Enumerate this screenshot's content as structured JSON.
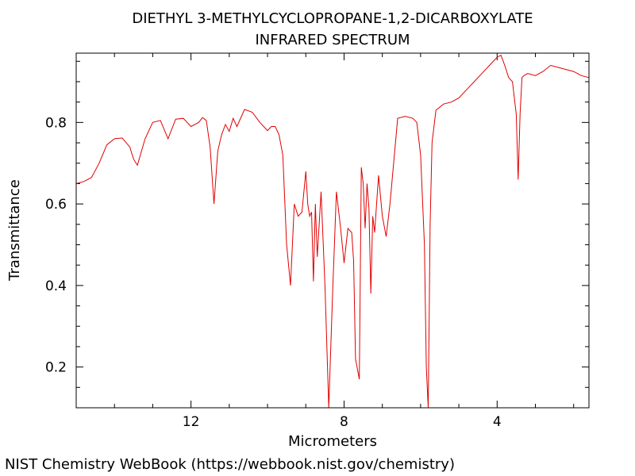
{
  "credit": "NIST Chemistry WebBook (https://webbook.nist.gov/chemistry)",
  "chart_data": {
    "type": "line",
    "title": "DIETHYL 3-METHYLCYCLOPROPANE-1,2-DICARBOXYLATE",
    "subtitle": "INFRARED SPECTRUM",
    "xlabel": "Micrometers",
    "ylabel": "Transmittance",
    "xlim": [
      15.0,
      1.6
    ],
    "ylim": [
      0.1,
      0.97
    ],
    "x_reversed": true,
    "grid": false,
    "x_ticks": [
      12,
      8,
      4
    ],
    "y_ticks": [
      0.2,
      0.4,
      0.6,
      0.8
    ],
    "line_color": "#e00000",
    "series": [
      {
        "x": [
          15.0,
          14.8,
          14.6,
          14.4,
          14.2,
          14.0,
          13.8,
          13.6,
          13.5,
          13.4,
          13.2,
          13.0,
          12.8,
          12.6,
          12.4,
          12.2,
          12.0,
          11.8,
          11.7,
          11.6,
          11.5,
          11.4,
          11.3,
          11.2,
          11.1,
          11.0,
          10.9,
          10.8,
          10.6,
          10.4,
          10.2,
          10.0,
          9.9,
          9.8,
          9.7,
          9.6,
          9.5,
          9.4,
          9.3,
          9.2,
          9.1,
          9.0,
          8.95,
          8.9,
          8.85,
          8.8,
          8.75,
          8.7,
          8.6,
          8.5,
          8.45,
          8.4,
          8.3,
          8.2,
          8.1,
          8.0,
          7.9,
          7.8,
          7.75,
          7.7,
          7.6,
          7.55,
          7.5,
          7.45,
          7.4,
          7.35,
          7.3,
          7.25,
          7.2,
          7.1,
          7.0,
          6.9,
          6.8,
          6.6,
          6.4,
          6.2,
          6.1,
          6.0,
          5.9,
          5.85,
          5.8,
          5.75,
          5.7,
          5.6,
          5.4,
          5.2,
          5.0,
          4.8,
          4.6,
          4.4,
          4.2,
          4.0,
          3.9,
          3.8,
          3.7,
          3.6,
          3.5,
          3.45,
          3.4,
          3.35,
          3.3,
          3.2,
          3.0,
          2.8,
          2.6,
          2.4,
          2.2,
          2.0,
          1.8,
          1.6
        ],
        "y": [
          0.65,
          0.655,
          0.665,
          0.7,
          0.745,
          0.76,
          0.762,
          0.74,
          0.71,
          0.695,
          0.76,
          0.8,
          0.805,
          0.76,
          0.808,
          0.81,
          0.79,
          0.8,
          0.812,
          0.805,
          0.74,
          0.6,
          0.73,
          0.77,
          0.795,
          0.778,
          0.81,
          0.79,
          0.832,
          0.825,
          0.8,
          0.78,
          0.79,
          0.79,
          0.77,
          0.72,
          0.5,
          0.4,
          0.6,
          0.57,
          0.58,
          0.68,
          0.6,
          0.57,
          0.58,
          0.41,
          0.6,
          0.47,
          0.63,
          0.4,
          0.25,
          0.1,
          0.38,
          0.63,
          0.55,
          0.455,
          0.54,
          0.53,
          0.46,
          0.22,
          0.17,
          0.69,
          0.65,
          0.54,
          0.65,
          0.59,
          0.38,
          0.57,
          0.53,
          0.67,
          0.57,
          0.52,
          0.6,
          0.81,
          0.815,
          0.81,
          0.8,
          0.72,
          0.5,
          0.2,
          0.1,
          0.55,
          0.75,
          0.83,
          0.845,
          0.85,
          0.86,
          0.88,
          0.9,
          0.92,
          0.94,
          0.96,
          0.965,
          0.94,
          0.91,
          0.9,
          0.82,
          0.66,
          0.82,
          0.91,
          0.915,
          0.92,
          0.915,
          0.925,
          0.94,
          0.935,
          0.93,
          0.925,
          0.915,
          0.91
        ]
      }
    ]
  }
}
